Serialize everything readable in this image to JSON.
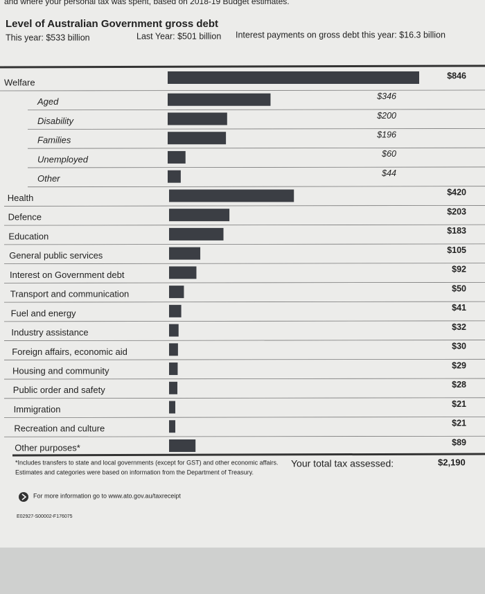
{
  "intro": "and where your personal tax was spent, based on 2018-19 Budget estimates.",
  "header": {
    "title": "Level of Australian Government gross debt",
    "this_year": "This year: $533 billion",
    "last_year": "Last Year: $501 billion",
    "interest": "Interest payments on gross debt this year: $16.3 billion"
  },
  "chart_data": {
    "type": "bar",
    "orientation": "horizontal",
    "color": "#3b3e44",
    "categories": [
      "Welfare",
      "Aged",
      "Disability",
      "Families",
      "Unemployed",
      "Other",
      "Health",
      "Defence",
      "Education",
      "General public services",
      "Interest on Government debt",
      "Transport and communication",
      "Fuel and energy",
      "Industry assistance",
      "Foreign affairs, economic aid",
      "Housing and community",
      "Public order and safety",
      "Immigration",
      "Recreation and culture",
      "Other purposes*"
    ],
    "values": [
      846,
      346,
      200,
      196,
      60,
      44,
      420,
      203,
      183,
      105,
      92,
      50,
      41,
      32,
      30,
      29,
      28,
      21,
      21,
      89
    ],
    "value_labels": [
      "$846",
      "$346",
      "$200",
      "$196",
      "$60",
      "$44",
      "$420",
      "$203",
      "$183",
      "$105",
      "$92",
      "$50",
      "$41",
      "$32",
      "$30",
      "$29",
      "$28",
      "$21",
      "$21",
      "$89"
    ]
  },
  "footer": {
    "note1": "*Includes transfers to state and local governments (except for GST) and other economic affairs.",
    "note2": "Estimates and categories were based on information from the Department of Treasury.",
    "total_label": "Your total tax assessed:",
    "total_value": "$2,190",
    "more_info": "For more information go to www.ato.gov.au/taxreceipt",
    "code": "E02927-S00002-F176075"
  }
}
